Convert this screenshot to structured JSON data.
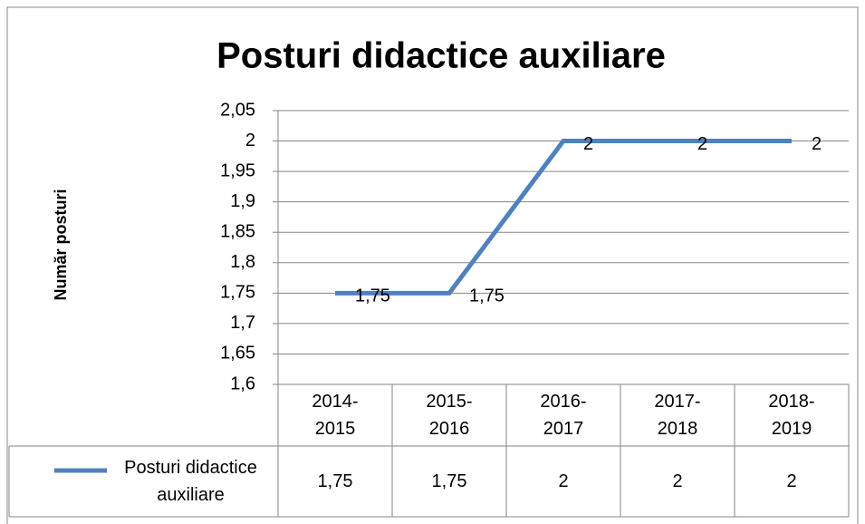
{
  "chart_data": {
    "type": "line",
    "title": "Posturi didactice auxiliare",
    "y_label": "Număr posturi",
    "categories": [
      "2014-2015",
      "2015-2016",
      "2016-2017",
      "2017-2018",
      "2018-2019"
    ],
    "series": [
      {
        "name": "Posturi didactice auxiliare",
        "color": "#4f81bd",
        "values": [
          1.75,
          1.75,
          2,
          2,
          2
        ],
        "value_labels": [
          "1,75",
          "1,75",
          "2",
          "2",
          "2"
        ]
      }
    ],
    "ylim": [
      1.6,
      2.05
    ],
    "yticks": [
      {
        "value": 1.6,
        "label": "1,6"
      },
      {
        "value": 1.65,
        "label": "1,65"
      },
      {
        "value": 1.7,
        "label": "1,7"
      },
      {
        "value": 1.75,
        "label": "1,75"
      },
      {
        "value": 1.8,
        "label": "1,8"
      },
      {
        "value": 1.85,
        "label": "1,85"
      },
      {
        "value": 1.9,
        "label": "1,9"
      },
      {
        "value": 1.95,
        "label": "1,95"
      },
      2,
      {
        "value": 2.05,
        "label": "2,05"
      }
    ],
    "grid": true,
    "data_table": true
  }
}
